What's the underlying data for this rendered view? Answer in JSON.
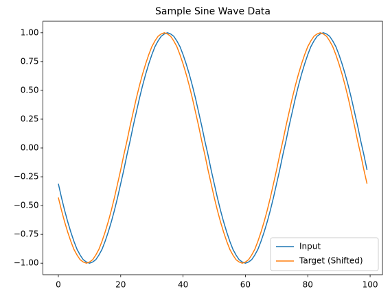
{
  "chart_data": {
    "type": "line",
    "title": "Sample Sine Wave Data",
    "x": [
      0,
      1,
      2,
      3,
      4,
      5,
      6,
      7,
      8,
      9,
      10,
      11,
      12,
      13,
      14,
      15,
      16,
      17,
      18,
      19,
      20,
      21,
      22,
      23,
      24,
      25,
      26,
      27,
      28,
      29,
      30,
      31,
      32,
      33,
      34,
      35,
      36,
      37,
      38,
      39,
      40,
      41,
      42,
      43,
      44,
      45,
      46,
      47,
      48,
      49,
      50,
      51,
      52,
      53,
      54,
      55,
      56,
      57,
      58,
      59,
      60,
      61,
      62,
      63,
      64,
      65,
      66,
      67,
      68,
      69,
      70,
      71,
      72,
      73,
      74,
      75,
      76,
      77,
      78,
      79,
      80,
      81,
      82,
      83,
      84,
      85,
      86,
      87,
      88,
      89,
      90,
      91,
      92,
      93,
      94,
      95,
      96,
      97,
      98,
      99
    ],
    "series": [
      {
        "name": "Input",
        "color": "#1f77b4",
        "values": [
          -0.31,
          -0.43,
          -0.54,
          -0.64,
          -0.73,
          -0.81,
          -0.88,
          -0.93,
          -0.97,
          -0.99,
          -1.0,
          -0.99,
          -0.97,
          -0.93,
          -0.88,
          -0.81,
          -0.73,
          -0.64,
          -0.54,
          -0.43,
          -0.31,
          -0.19,
          -0.06,
          0.06,
          0.19,
          0.31,
          0.43,
          0.54,
          0.64,
          0.73,
          0.81,
          0.88,
          0.93,
          0.97,
          0.99,
          1.0,
          0.99,
          0.97,
          0.93,
          0.88,
          0.81,
          0.73,
          0.64,
          0.54,
          0.43,
          0.31,
          0.19,
          0.06,
          -0.06,
          -0.19,
          -0.31,
          -0.43,
          -0.54,
          -0.64,
          -0.73,
          -0.81,
          -0.88,
          -0.93,
          -0.97,
          -0.99,
          -1.0,
          -0.99,
          -0.97,
          -0.93,
          -0.88,
          -0.81,
          -0.73,
          -0.64,
          -0.54,
          -0.43,
          -0.31,
          -0.19,
          -0.06,
          0.06,
          0.19,
          0.31,
          0.43,
          0.54,
          0.64,
          0.73,
          0.81,
          0.88,
          0.93,
          0.97,
          0.99,
          1.0,
          0.99,
          0.97,
          0.93,
          0.88,
          0.81,
          0.73,
          0.64,
          0.54,
          0.43,
          0.31,
          0.19,
          0.06,
          -0.06,
          -0.19
        ]
      },
      {
        "name": "Target (Shifted)",
        "color": "#ff7f0e",
        "values": [
          -0.43,
          -0.54,
          -0.64,
          -0.73,
          -0.81,
          -0.88,
          -0.93,
          -0.97,
          -0.99,
          -1.0,
          -0.99,
          -0.97,
          -0.93,
          -0.88,
          -0.81,
          -0.73,
          -0.64,
          -0.54,
          -0.43,
          -0.31,
          -0.19,
          -0.06,
          0.06,
          0.19,
          0.31,
          0.43,
          0.54,
          0.64,
          0.73,
          0.81,
          0.88,
          0.93,
          0.97,
          0.99,
          1.0,
          0.99,
          0.97,
          0.93,
          0.88,
          0.81,
          0.73,
          0.64,
          0.54,
          0.43,
          0.31,
          0.19,
          0.06,
          -0.06,
          -0.19,
          -0.31,
          -0.43,
          -0.54,
          -0.64,
          -0.73,
          -0.81,
          -0.88,
          -0.93,
          -0.97,
          -0.99,
          -1.0,
          -0.99,
          -0.97,
          -0.93,
          -0.88,
          -0.81,
          -0.73,
          -0.64,
          -0.54,
          -0.43,
          -0.31,
          -0.19,
          -0.06,
          0.06,
          0.19,
          0.31,
          0.43,
          0.54,
          0.64,
          0.73,
          0.81,
          0.88,
          0.93,
          0.97,
          0.99,
          1.0,
          0.99,
          0.97,
          0.93,
          0.88,
          0.81,
          0.73,
          0.64,
          0.54,
          0.43,
          0.31,
          0.19,
          0.06,
          -0.06,
          -0.19,
          -0.31
        ]
      }
    ],
    "xlim": [
      -4.95,
      103.95
    ],
    "xticks": [
      0,
      20,
      40,
      60,
      80,
      100
    ],
    "ylim": [
      -1.1,
      1.1
    ],
    "yticks": [
      {
        "value": -1.0,
        "label": "−1.00"
      },
      {
        "value": -0.75,
        "label": "−0.75"
      },
      {
        "value": -0.5,
        "label": "−0.50"
      },
      {
        "value": -0.25,
        "label": "−0.25"
      },
      {
        "value": 0,
        "label": "0.00"
      },
      {
        "value": 0.25,
        "label": "0.25"
      },
      {
        "value": 0.5,
        "label": "0.50"
      },
      {
        "value": 0.75,
        "label": "0.75"
      },
      {
        "value": 1.0,
        "label": "1.00"
      }
    ],
    "legend": "lower right"
  }
}
